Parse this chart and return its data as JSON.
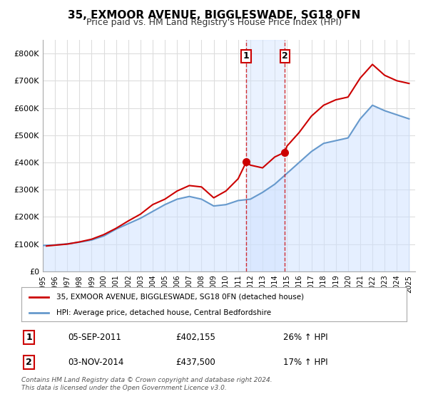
{
  "title": "35, EXMOOR AVENUE, BIGGLESWADE, SG18 0FN",
  "subtitle": "Price paid vs. HM Land Registry's House Price Index (HPI)",
  "ylabel_ticks": [
    "£0",
    "£100K",
    "£200K",
    "£300K",
    "£400K",
    "£500K",
    "£600K",
    "£700K",
    "£800K"
  ],
  "ytick_values": [
    0,
    100000,
    200000,
    300000,
    400000,
    500000,
    600000,
    700000,
    800000
  ],
  "ylim": [
    0,
    850000
  ],
  "xlim_start": 1995,
  "xlim_end": 2025.5,
  "xticks": [
    1995,
    1996,
    1997,
    1998,
    1999,
    2000,
    2001,
    2002,
    2003,
    2004,
    2005,
    2006,
    2007,
    2008,
    2009,
    2010,
    2011,
    2012,
    2013,
    2014,
    2015,
    2016,
    2017,
    2018,
    2019,
    2020,
    2021,
    2022,
    2023,
    2024,
    2025
  ],
  "red_line_color": "#cc0000",
  "blue_line_color": "#6699cc",
  "blue_fill_color": "#cce0ff",
  "transaction1_x": 2011.67,
  "transaction1_y": 402155,
  "transaction1_label": "1",
  "transaction2_x": 2014.83,
  "transaction2_y": 437500,
  "transaction2_label": "2",
  "vline1_x": 2011.67,
  "vline2_x": 2014.83,
  "shade_start": 2011.67,
  "shade_end": 2014.83,
  "legend_red_label": "35, EXMOOR AVENUE, BIGGLESWADE, SG18 0FN (detached house)",
  "legend_blue_label": "HPI: Average price, detached house, Central Bedfordshire",
  "table_rows": [
    [
      "1",
      "05-SEP-2011",
      "£402,155",
      "26% ↑ HPI"
    ],
    [
      "2",
      "03-NOV-2014",
      "£437,500",
      "17% ↑ HPI"
    ]
  ],
  "footer_text": "Contains HM Land Registry data © Crown copyright and database right 2024.\nThis data is licensed under the Open Government Licence v3.0.",
  "background_color": "#ffffff",
  "plot_bg_color": "#ffffff",
  "grid_color": "#dddddd",
  "title_fontsize": 11,
  "subtitle_fontsize": 9,
  "hpi_years": [
    1995,
    1996,
    1997,
    1998,
    1999,
    2000,
    2001,
    2002,
    2003,
    2004,
    2005,
    2006,
    2007,
    2008,
    2009,
    2010,
    2011,
    2012,
    2013,
    2014,
    2015,
    2016,
    2017,
    2018,
    2019,
    2020,
    2021,
    2022,
    2023,
    2024,
    2025
  ],
  "hpi_values": [
    95000,
    97000,
    101000,
    107000,
    115000,
    130000,
    155000,
    175000,
    195000,
    220000,
    245000,
    265000,
    275000,
    265000,
    240000,
    245000,
    260000,
    265000,
    290000,
    320000,
    360000,
    400000,
    440000,
    470000,
    480000,
    490000,
    560000,
    610000,
    590000,
    575000,
    560000
  ],
  "price_years": [
    1995.3,
    1996.0,
    1997.0,
    1998.0,
    1999.0,
    2000.0,
    2001.0,
    2002.0,
    2003.0,
    2004.0,
    2005.0,
    2006.0,
    2007.0,
    2008.0,
    2009.0,
    2010.0,
    2011.0,
    2011.67,
    2012.0,
    2013.0,
    2014.0,
    2014.83,
    2015.0,
    2016.0,
    2017.0,
    2018.0,
    2019.0,
    2020.0,
    2021.0,
    2022.0,
    2023.0,
    2024.0,
    2025.0
  ],
  "price_values": [
    93000,
    96000,
    100000,
    108000,
    118000,
    135000,
    158000,
    185000,
    210000,
    245000,
    265000,
    295000,
    315000,
    310000,
    270000,
    295000,
    340000,
    402155,
    390000,
    380000,
    420000,
    437500,
    460000,
    510000,
    570000,
    610000,
    630000,
    640000,
    710000,
    760000,
    720000,
    700000,
    690000
  ]
}
